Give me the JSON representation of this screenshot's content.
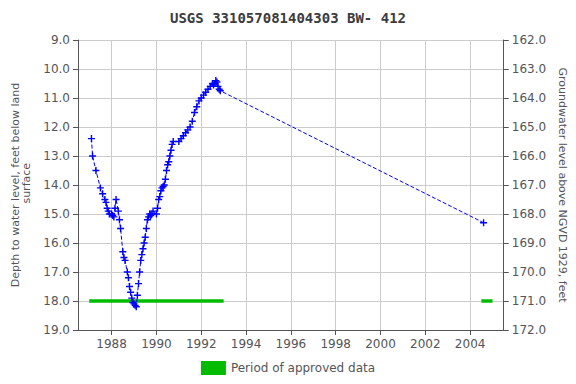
{
  "chart_data": {
    "type": "line",
    "title": "USGS 331057081404303 BW- 412",
    "ylabel": "Depth to water level, feet below land\n surface",
    "y2label": "Groundwater level above NGVD 1929, feet",
    "x": [
      1987.1,
      1987.15,
      1987.3,
      1987.5,
      1987.6,
      1987.7,
      1987.75,
      1987.8,
      1987.85,
      1987.9,
      1988.0,
      1988.05,
      1988.1,
      1988.15,
      1988.2,
      1988.3,
      1988.35,
      1988.4,
      1988.5,
      1988.55,
      1988.6,
      1988.7,
      1988.75,
      1988.8,
      1988.85,
      1988.9,
      1988.95,
      1989.0,
      1989.05,
      1989.1,
      1989.15,
      1989.2,
      1989.25,
      1989.3,
      1989.35,
      1989.4,
      1989.45,
      1989.5,
      1989.55,
      1989.6,
      1989.65,
      1989.7,
      1989.75,
      1989.8,
      1989.85,
      1990.0,
      1990.05,
      1990.1,
      1990.15,
      1990.2,
      1990.25,
      1990.3,
      1990.35,
      1990.4,
      1990.45,
      1990.5,
      1990.55,
      1990.6,
      1990.65,
      1990.7,
      1990.75,
      1991.0,
      1991.1,
      1991.2,
      1991.3,
      1991.4,
      1991.5,
      1991.6,
      1991.7,
      1991.8,
      1991.9,
      1992.0,
      1992.1,
      1992.2,
      1992.3,
      1992.4,
      1992.5,
      1992.55,
      1992.6,
      1992.65,
      1992.7,
      1992.75,
      1992.8,
      1992.85,
      2004.6
    ],
    "series": [
      {
        "type": "line",
        "color": "#0000FF",
        "marker": "+",
        "line_style": "dashed",
        "values": [
          12.4,
          13.0,
          13.5,
          14.1,
          14.3,
          14.5,
          14.6,
          14.8,
          14.9,
          15.0,
          15.0,
          15.05,
          15.1,
          14.8,
          14.5,
          14.9,
          15.2,
          15.5,
          16.3,
          16.5,
          16.6,
          17.0,
          17.2,
          17.5,
          17.7,
          17.9,
          18.05,
          18.1,
          18.15,
          18.2,
          17.8,
          17.4,
          17.0,
          16.6,
          16.4,
          16.2,
          16.0,
          15.8,
          15.5,
          15.2,
          15.1,
          15.0,
          15.05,
          15.0,
          14.9,
          15.0,
          14.8,
          14.5,
          14.4,
          14.2,
          14.1,
          14.05,
          14.0,
          13.8,
          13.5,
          13.3,
          13.2,
          13.0,
          12.8,
          12.6,
          12.5,
          12.5,
          12.4,
          12.3,
          12.2,
          12.1,
          12.0,
          11.8,
          11.5,
          11.3,
          11.1,
          11.0,
          10.9,
          10.8,
          10.7,
          10.6,
          10.5,
          10.55,
          10.5,
          10.4,
          10.45,
          10.6,
          10.7,
          10.75,
          15.3
        ]
      },
      {
        "type": "period_bar",
        "name": "Period of approved data",
        "color": "#00BB00",
        "periods": [
          [
            1987.0,
            1993.0
          ],
          [
            2004.5,
            2005.0
          ]
        ],
        "y": 18.0
      }
    ],
    "xlim": [
      1986.5,
      2005.5
    ],
    "xticks": [
      1988,
      1990,
      1992,
      1994,
      1996,
      1998,
      2000,
      2002,
      2004
    ],
    "ylim": [
      19.0,
      9.0
    ],
    "yticks": [
      {
        "value": 9.0,
        "label": "9.0"
      },
      {
        "value": 10.0,
        "label": "10.0"
      },
      {
        "value": 11.0,
        "label": "11.0"
      },
      {
        "value": 12.0,
        "label": "12.0"
      },
      {
        "value": 13.0,
        "label": "13.0"
      },
      {
        "value": 14.0,
        "label": "14.0"
      },
      {
        "value": 15.0,
        "label": "15.0"
      },
      {
        "value": 16.0,
        "label": "16.0"
      },
      {
        "value": 17.0,
        "label": "17.0"
      },
      {
        "value": 18.0,
        "label": "18.0"
      },
      {
        "value": 19.0,
        "label": "19.0"
      }
    ],
    "y2lim": [
      172.0,
      162.0
    ],
    "y2ticks": [
      {
        "value": 162.0,
        "label": "162.0"
      },
      {
        "value": 163.0,
        "label": "163.0"
      },
      {
        "value": 164.0,
        "label": "164.0"
      },
      {
        "value": 165.0,
        "label": "165.0"
      },
      {
        "value": 166.0,
        "label": "166.0"
      },
      {
        "value": 167.0,
        "label": "167.0"
      },
      {
        "value": 168.0,
        "label": "168.0"
      },
      {
        "value": 169.0,
        "label": "169.0"
      },
      {
        "value": 170.0,
        "label": "170.0"
      },
      {
        "value": 171.0,
        "label": "171.0"
      },
      {
        "value": 172.0,
        "label": "172.0"
      }
    ],
    "grid": true,
    "legend": "bottom"
  }
}
